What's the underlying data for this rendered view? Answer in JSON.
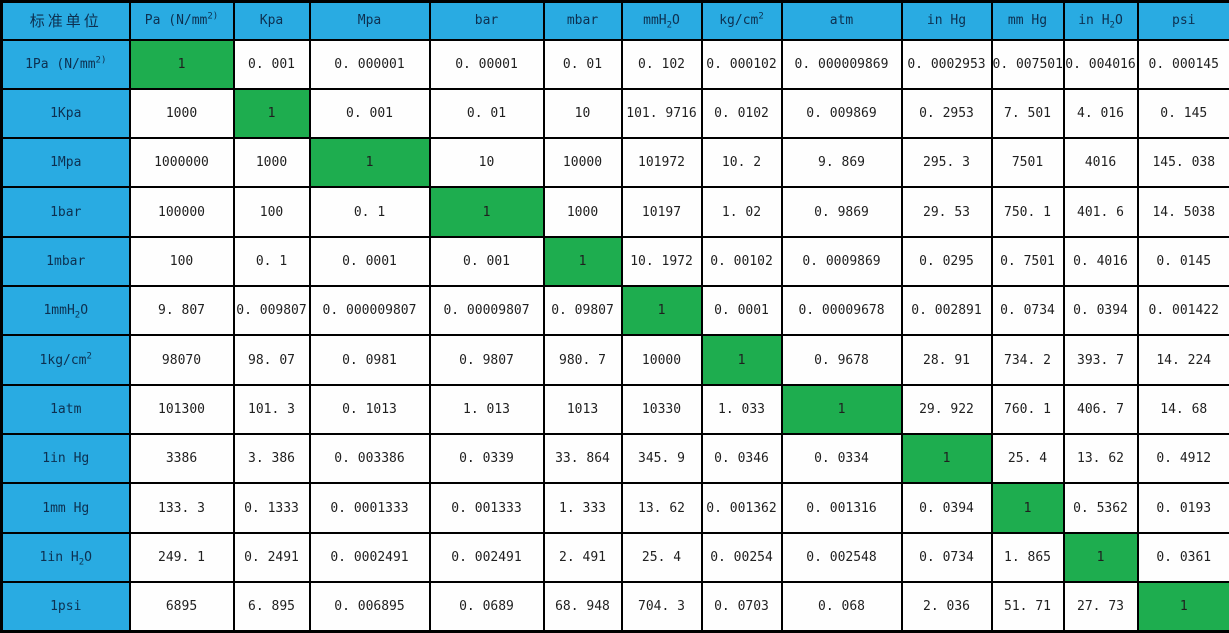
{
  "colors": {
    "header_bg": "#29ABE2",
    "diagonal_bg": "#1EAD4F",
    "header_text": "#0D3050",
    "value_text": "#1F1F1F",
    "cell_bg": "#FEFEFE",
    "border": "#000000"
  },
  "table": {
    "corner_header": "标准单位",
    "column_headers": [
      "Pa (N/mm^{2)}",
      "Kpa",
      "Mpa",
      "bar",
      "mbar",
      "mmH_{2}O",
      "kg/cm^{2}",
      "atm",
      "in Hg",
      "mm Hg",
      "in H_{2}O",
      "psi"
    ],
    "rows": [
      {
        "label": "1Pa (N/mm^{2)}",
        "highlight_index": 0,
        "values": [
          "1",
          "0. 001",
          "0. 000001",
          "0. 00001",
          "0. 01",
          "0. 102",
          "0. 000102",
          "0. 000009869",
          "0. 0002953",
          "0. 007501",
          "0. 004016",
          "0. 000145"
        ]
      },
      {
        "label": "1Kpa",
        "highlight_index": 1,
        "values": [
          "1000",
          "1",
          "0. 001",
          "0. 01",
          "10",
          "101. 9716",
          "0. 0102",
          "0. 009869",
          "0. 2953",
          "7. 501",
          "4. 016",
          "0. 145"
        ]
      },
      {
        "label": "1Mpa",
        "highlight_index": 2,
        "values": [
          "1000000",
          "1000",
          "1",
          "10",
          "10000",
          "101972",
          "10. 2",
          "9. 869",
          "295. 3",
          "7501",
          "4016",
          "145. 038"
        ]
      },
      {
        "label": "1bar",
        "highlight_index": 3,
        "values": [
          "100000",
          "100",
          "0. 1",
          "1",
          "1000",
          "10197",
          "1. 02",
          "0. 9869",
          "29. 53",
          "750. 1",
          "401. 6",
          "14. 5038"
        ]
      },
      {
        "label": "1mbar",
        "highlight_index": 4,
        "values": [
          "100",
          "0. 1",
          "0. 0001",
          "0. 001",
          "1",
          "10. 1972",
          "0. 00102",
          "0. 0009869",
          "0. 0295",
          "0. 7501",
          "0. 4016",
          "0. 0145"
        ]
      },
      {
        "label": "1mmH_{2}O",
        "highlight_index": 5,
        "values": [
          "9. 807",
          "0. 009807",
          "0. 000009807",
          "0. 00009807",
          "0. 09807",
          "1",
          "0. 0001",
          "0. 00009678",
          "0. 002891",
          "0. 0734",
          "0. 0394",
          "0. 001422"
        ]
      },
      {
        "label": "1kg/cm^{2}",
        "highlight_index": 6,
        "values": [
          "98070",
          "98. 07",
          "0. 0981",
          "0. 9807",
          "980. 7",
          "10000",
          "1",
          "0. 9678",
          "28. 91",
          "734. 2",
          "393. 7",
          "14. 224"
        ]
      },
      {
        "label": "1atm",
        "highlight_index": 7,
        "values": [
          "101300",
          "101. 3",
          "0. 1013",
          "1. 013",
          "1013",
          "10330",
          "1. 033",
          "1",
          "29. 922",
          "760. 1",
          "406. 7",
          "14. 68"
        ]
      },
      {
        "label": "1in Hg",
        "highlight_index": 8,
        "values": [
          "3386",
          "3. 386",
          "0. 003386",
          "0. 0339",
          "33. 864",
          "345. 9",
          "0. 0346",
          "0. 0334",
          "1",
          "25. 4",
          "13. 62",
          "0. 4912"
        ]
      },
      {
        "label": "1mm Hg",
        "highlight_index": 9,
        "values": [
          "133. 3",
          "0. 1333",
          "0. 0001333",
          "0. 001333",
          "1. 333",
          "13. 62",
          "0. 001362",
          "0. 001316",
          "0. 0394",
          "1",
          "0. 5362",
          "0. 0193"
        ]
      },
      {
        "label": "1in H_{2}O",
        "highlight_index": 10,
        "values": [
          "249. 1",
          "0. 2491",
          "0. 0002491",
          "0. 002491",
          "2. 491",
          "25. 4",
          "0. 00254",
          "0. 002548",
          "0. 0734",
          "1. 865",
          "1",
          "0. 0361"
        ]
      },
      {
        "label": "1psi",
        "highlight_index": 11,
        "values": [
          "6895",
          "6. 895",
          "0. 006895",
          "0. 0689",
          "68. 948",
          "704. 3",
          "0. 0703",
          "0. 068",
          "2. 036",
          "51. 71",
          "27. 73",
          "1"
        ]
      }
    ]
  }
}
